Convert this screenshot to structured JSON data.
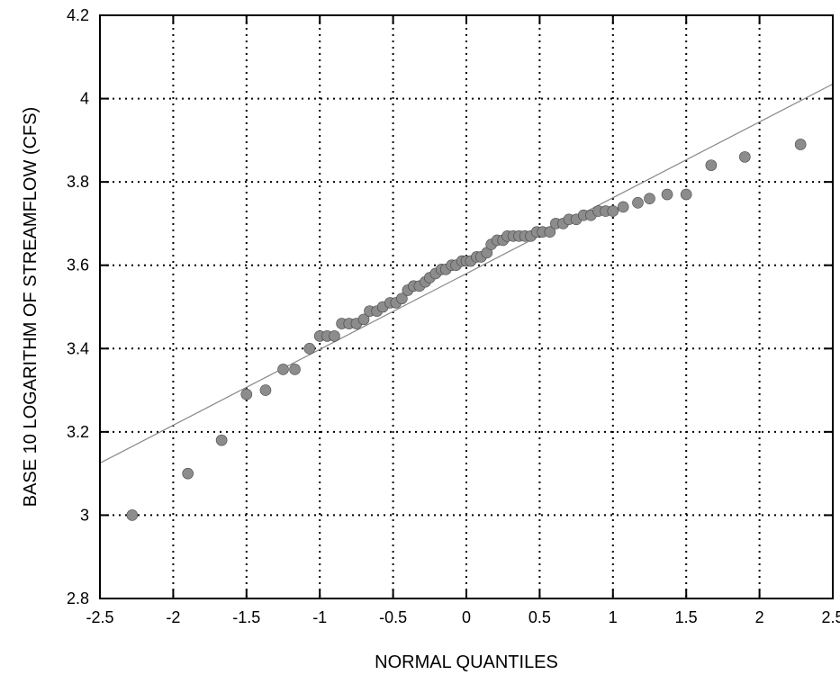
{
  "chart_data": {
    "type": "scatter",
    "title": "",
    "xlabel": "NORMAL QUANTILES",
    "ylabel": "BASE 10 LOGARITHM OF STREAMFLOW (CFS)",
    "xlim": [
      -2.5,
      2.5
    ],
    "ylim": [
      2.8,
      4.2
    ],
    "xticks": [
      -2.5,
      -2,
      -1.5,
      -1,
      -0.5,
      0,
      0.5,
      1,
      1.5,
      2,
      2.5
    ],
    "yticks": [
      2.8,
      3,
      3.2,
      3.4,
      3.6,
      3.8,
      4,
      4.2
    ],
    "xtick_labels": [
      "-2.5",
      "-2",
      "-1.5",
      "-1",
      "-0.5",
      "0",
      "0.5",
      "1",
      "1.5",
      "2",
      "2.5"
    ],
    "ytick_labels": [
      "2.8",
      "3",
      "3.2",
      "3.4",
      "3.6",
      "3.8",
      "4",
      "4.2"
    ],
    "grid": true,
    "fit_line": {
      "x": [
        -2.5,
        2.5
      ],
      "y": [
        3.125,
        4.035
      ]
    },
    "points": [
      [
        -2.28,
        3.0
      ],
      [
        -1.9,
        3.1
      ],
      [
        -1.67,
        3.18
      ],
      [
        -1.5,
        3.29
      ],
      [
        -1.37,
        3.3
      ],
      [
        -1.25,
        3.35
      ],
      [
        -1.17,
        3.35
      ],
      [
        -1.07,
        3.4
      ],
      [
        -1.0,
        3.43
      ],
      [
        -0.95,
        3.43
      ],
      [
        -0.9,
        3.43
      ],
      [
        -0.85,
        3.46
      ],
      [
        -0.8,
        3.46
      ],
      [
        -0.75,
        3.46
      ],
      [
        -0.7,
        3.47
      ],
      [
        -0.66,
        3.49
      ],
      [
        -0.61,
        3.49
      ],
      [
        -0.57,
        3.5
      ],
      [
        -0.52,
        3.51
      ],
      [
        -0.48,
        3.51
      ],
      [
        -0.44,
        3.52
      ],
      [
        -0.4,
        3.54
      ],
      [
        -0.36,
        3.55
      ],
      [
        -0.32,
        3.55
      ],
      [
        -0.28,
        3.56
      ],
      [
        -0.25,
        3.57
      ],
      [
        -0.21,
        3.58
      ],
      [
        -0.17,
        3.59
      ],
      [
        -0.14,
        3.59
      ],
      [
        -0.1,
        3.6
      ],
      [
        -0.07,
        3.6
      ],
      [
        -0.03,
        3.61
      ],
      [
        0.0,
        3.61
      ],
      [
        0.03,
        3.61
      ],
      [
        0.07,
        3.62
      ],
      [
        0.1,
        3.62
      ],
      [
        0.14,
        3.63
      ],
      [
        0.17,
        3.65
      ],
      [
        0.21,
        3.66
      ],
      [
        0.25,
        3.66
      ],
      [
        0.28,
        3.67
      ],
      [
        0.32,
        3.67
      ],
      [
        0.36,
        3.67
      ],
      [
        0.4,
        3.67
      ],
      [
        0.44,
        3.67
      ],
      [
        0.48,
        3.68
      ],
      [
        0.52,
        3.68
      ],
      [
        0.57,
        3.68
      ],
      [
        0.61,
        3.7
      ],
      [
        0.66,
        3.7
      ],
      [
        0.7,
        3.71
      ],
      [
        0.75,
        3.71
      ],
      [
        0.8,
        3.72
      ],
      [
        0.85,
        3.72
      ],
      [
        0.9,
        3.73
      ],
      [
        0.95,
        3.73
      ],
      [
        1.0,
        3.73
      ],
      [
        1.07,
        3.74
      ],
      [
        1.17,
        3.75
      ],
      [
        1.25,
        3.76
      ],
      [
        1.37,
        3.77
      ],
      [
        1.5,
        3.77
      ],
      [
        1.67,
        3.84
      ],
      [
        1.9,
        3.86
      ],
      [
        2.28,
        3.89
      ]
    ]
  }
}
